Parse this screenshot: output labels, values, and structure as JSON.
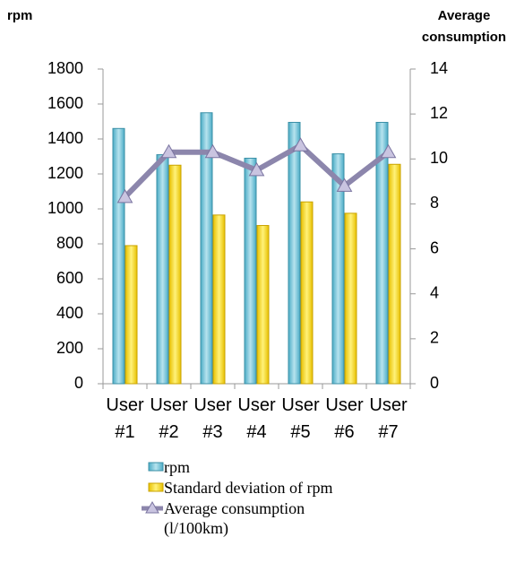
{
  "chart_data": {
    "type": "bar",
    "y_label": "rpm",
    "y2_label": "Average consumption",
    "categories": [
      "User #1",
      "User #2",
      "User #3",
      "User #4",
      "User #5",
      "User #6",
      "User #7"
    ],
    "series": [
      {
        "name": "rpm",
        "color": "#4bacc6",
        "values": [
          1460,
          1310,
          1550,
          1290,
          1495,
          1315,
          1495
        ]
      },
      {
        "name": "Standard deviation of rpm",
        "color": "#ffd700",
        "values": [
          790,
          1250,
          965,
          905,
          1040,
          975,
          1255
        ]
      },
      {
        "name": "Average consumption (l/100km)",
        "color": "#8c86ac",
        "type": "line",
        "axis": "y2",
        "values": [
          8.3,
          10.3,
          10.3,
          9.5,
          10.6,
          8.8,
          10.3
        ]
      }
    ],
    "ylim": [
      0,
      1800
    ],
    "yticks": [
      0,
      200,
      400,
      600,
      800,
      1000,
      1200,
      1400,
      1600,
      1800
    ],
    "y2lim": [
      0,
      14
    ],
    "y2ticks": [
      0,
      2,
      4,
      6,
      8,
      10,
      12,
      14
    ],
    "legend": "bottom"
  }
}
